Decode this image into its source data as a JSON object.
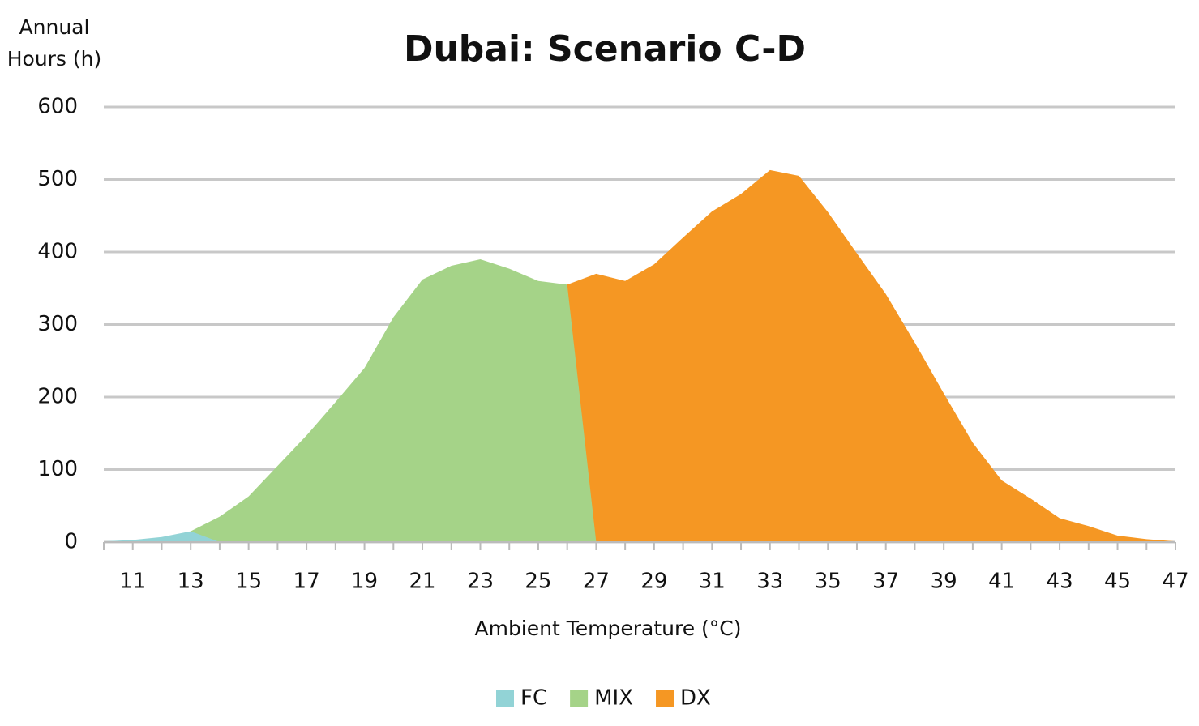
{
  "chart_data": {
    "type": "area",
    "title": "Dubai: Scenario C-D",
    "x_label": "Ambient Temperature (°C)",
    "y_label": "Annual Hours (h)",
    "x": [
      10,
      11,
      12,
      13,
      14,
      15,
      16,
      17,
      18,
      19,
      20,
      21,
      22,
      23,
      24,
      25,
      26,
      27,
      28,
      29,
      30,
      31,
      32,
      33,
      34,
      35,
      36,
      37,
      38,
      39,
      40,
      41,
      42,
      43,
      44,
      45,
      46,
      47
    ],
    "xlim": [
      10,
      47
    ],
    "xticks": [
      11,
      13,
      15,
      17,
      19,
      21,
      23,
      25,
      27,
      29,
      31,
      33,
      35,
      37,
      39,
      41,
      43,
      45,
      47
    ],
    "ylim": [
      0,
      600
    ],
    "yticks": [
      0,
      100,
      200,
      300,
      400,
      500,
      600
    ],
    "grid": true,
    "series": [
      {
        "name": "FC",
        "color": "#92d3d6",
        "values": [
          1,
          3,
          7,
          15,
          0,
          null,
          null,
          null,
          null,
          null,
          null,
          null,
          null,
          null,
          null,
          null,
          null,
          null,
          null,
          null,
          null,
          null,
          null,
          null,
          null,
          null,
          null,
          null,
          null,
          null,
          null,
          null,
          null,
          null,
          null,
          null,
          null,
          null
        ]
      },
      {
        "name": "MIX",
        "color": "#a5d388",
        "values": [
          null,
          null,
          null,
          15,
          35,
          63,
          105,
          147,
          193,
          240,
          310,
          362,
          381,
          390,
          377,
          360,
          355,
          0,
          null,
          null,
          null,
          null,
          null,
          null,
          null,
          null,
          null,
          null,
          null,
          null,
          null,
          null,
          null,
          null,
          null,
          null,
          null,
          null
        ]
      },
      {
        "name": "DX",
        "color": "#f59723",
        "values": [
          null,
          null,
          null,
          null,
          null,
          null,
          null,
          null,
          null,
          null,
          null,
          null,
          null,
          null,
          null,
          null,
          355,
          370,
          360,
          383,
          420,
          456,
          480,
          513,
          505,
          455,
          398,
          342,
          275,
          205,
          137,
          85,
          60,
          33,
          22,
          9,
          4,
          1
        ]
      }
    ]
  }
}
